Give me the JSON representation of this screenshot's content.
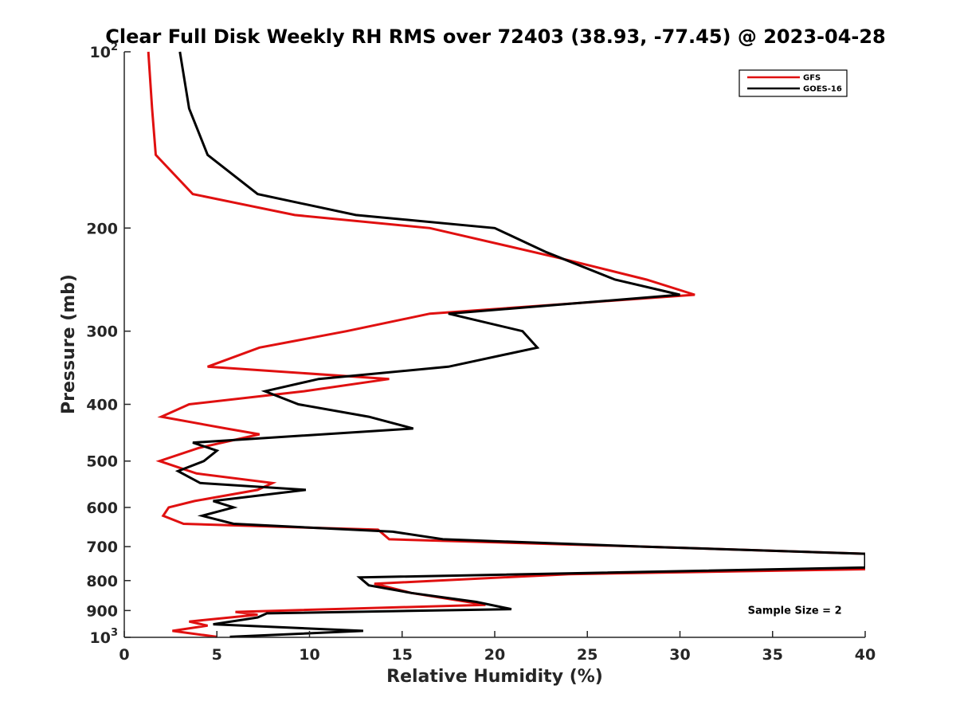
{
  "chart_data": {
    "type": "line",
    "title": "Clear Full Disk Weekly RH RMS over 72403 (38.93, -77.45) @ 2023-04-28",
    "xlabel": "Relative Humidity (%)",
    "ylabel": "Pressure (mb)",
    "xlim": [
      0,
      40
    ],
    "ylim": [
      100,
      1000
    ],
    "y_scale": "log",
    "y_reversed": true,
    "x_ticks": [
      0,
      5,
      10,
      15,
      20,
      25,
      30,
      35,
      40
    ],
    "y_ticks": [
      {
        "value": 100,
        "label": "10",
        "sup": "2"
      },
      {
        "value": 200,
        "label": "200",
        "sup": ""
      },
      {
        "value": 300,
        "label": "300",
        "sup": ""
      },
      {
        "value": 400,
        "label": "400",
        "sup": ""
      },
      {
        "value": 500,
        "label": "500",
        "sup": ""
      },
      {
        "value": 600,
        "label": "600",
        "sup": ""
      },
      {
        "value": 700,
        "label": "700",
        "sup": ""
      },
      {
        "value": 800,
        "label": "800",
        "sup": ""
      },
      {
        "value": 900,
        "label": "900",
        "sup": ""
      },
      {
        "value": 1000,
        "label": "10",
        "sup": "3"
      }
    ],
    "grid": false,
    "legend_position": "top-right",
    "series": [
      {
        "name": "GFS",
        "color": "#e01010",
        "points": [
          [
            1.3,
            100
          ],
          [
            1.5,
            125
          ],
          [
            1.7,
            150
          ],
          [
            3.7,
            175
          ],
          [
            9.2,
            190
          ],
          [
            16.5,
            200
          ],
          [
            23.5,
            225
          ],
          [
            28.2,
            245
          ],
          [
            30.8,
            260
          ],
          [
            16.5,
            280
          ],
          [
            12.0,
            300
          ],
          [
            7.3,
            320
          ],
          [
            4.5,
            345
          ],
          [
            14.3,
            362
          ],
          [
            9.7,
            380
          ],
          [
            3.5,
            400
          ],
          [
            2.0,
            420
          ],
          [
            5.5,
            440
          ],
          [
            7.3,
            450
          ],
          [
            4.0,
            475
          ],
          [
            1.9,
            500
          ],
          [
            3.9,
            525
          ],
          [
            8.0,
            545
          ],
          [
            7.2,
            560
          ],
          [
            3.8,
            585
          ],
          [
            2.4,
            600
          ],
          [
            2.1,
            620
          ],
          [
            3.2,
            640
          ],
          [
            13.7,
            655
          ],
          [
            14.3,
            680
          ],
          [
            28.0,
            700
          ],
          [
            40.0,
            720
          ],
          [
            40.0,
            745
          ],
          [
            40.0,
            765
          ],
          [
            24.0,
            780
          ],
          [
            13.5,
            810
          ],
          [
            15.5,
            840
          ],
          [
            19.5,
            880
          ],
          [
            6.0,
            905
          ],
          [
            7.2,
            915
          ],
          [
            3.5,
            940
          ],
          [
            4.5,
            955
          ],
          [
            2.6,
            975
          ],
          [
            5.0,
            998
          ]
        ]
      },
      {
        "name": "GOES-16",
        "color": "#000000",
        "points": [
          [
            3.0,
            100
          ],
          [
            3.5,
            125
          ],
          [
            4.5,
            150
          ],
          [
            7.2,
            175
          ],
          [
            12.5,
            190
          ],
          [
            20.0,
            200
          ],
          [
            22.8,
            220
          ],
          [
            26.5,
            245
          ],
          [
            30.0,
            260
          ],
          [
            17.5,
            280
          ],
          [
            21.5,
            300
          ],
          [
            22.3,
            320
          ],
          [
            17.5,
            345
          ],
          [
            10.5,
            362
          ],
          [
            7.6,
            380
          ],
          [
            9.4,
            400
          ],
          [
            13.2,
            420
          ],
          [
            15.6,
            440
          ],
          [
            3.7,
            465
          ],
          [
            5.0,
            480
          ],
          [
            4.3,
            500
          ],
          [
            2.9,
            520
          ],
          [
            4.1,
            545
          ],
          [
            9.8,
            560
          ],
          [
            4.8,
            585
          ],
          [
            5.9,
            600
          ],
          [
            4.2,
            620
          ],
          [
            5.9,
            640
          ],
          [
            14.5,
            660
          ],
          [
            17.2,
            680
          ],
          [
            28.0,
            700
          ],
          [
            40.0,
            720
          ],
          [
            40.0,
            740
          ],
          [
            40.0,
            760
          ],
          [
            12.7,
            790
          ],
          [
            13.2,
            815
          ],
          [
            15.5,
            840
          ],
          [
            19.0,
            870
          ],
          [
            20.9,
            895
          ],
          [
            7.7,
            910
          ],
          [
            7.2,
            925
          ],
          [
            4.8,
            950
          ],
          [
            12.9,
            975
          ],
          [
            5.7,
            998
          ]
        ]
      }
    ],
    "annotations": [
      {
        "text": "Sample Size = 2",
        "x": 36.2,
        "y": 900
      }
    ]
  }
}
